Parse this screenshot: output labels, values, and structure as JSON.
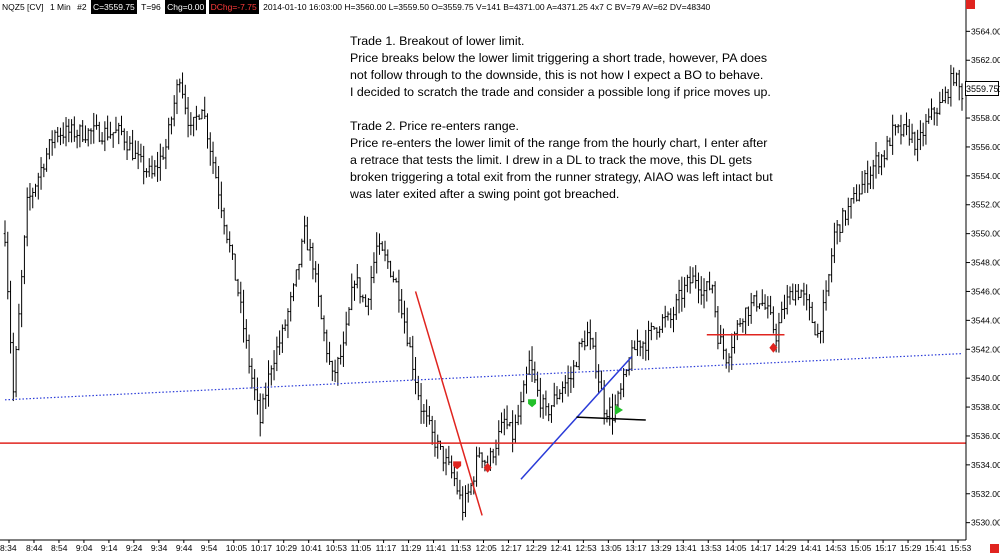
{
  "info_bar": {
    "symbol": "NQZ5 [CV]",
    "interval": "1 Min",
    "chart_no": "#2",
    "close": "C=3559.75",
    "ticks": "T=96",
    "change": "Chg=0.00",
    "daily_change": "DChg=-7.75",
    "stats": "2014-01-10 16:03:00 H=3560.00 L=3559.50 O=3559.75 V=141 B=4371.00 A=4371.25 4x7 C BV=79 AV=62 DV=48340"
  },
  "annotation": {
    "trade1": [
      "Trade 1.  Breakout of lower limit.",
      "Price breaks below the lower limit triggering a short trade, however, PA does",
      "not follow through to the downside, this is not how I expect a BO to behave.",
      "I decided to scratch the trade and consider a possible long if price moves up."
    ],
    "trade2": [
      "Trade 2.  Price re-enters range.",
      "Price re-enters the lower limit of the range from the hourly chart, I enter after",
      "a retrace that tests the limit.  I drew in a DL to track the move, this DL gets",
      "broken triggering a total exit from the runner strategy, AIAO was left intact but",
      "was later exited after a swing point got breached."
    ]
  },
  "last_price_tag": "3559.75",
  "colors": {
    "candles": "#000000",
    "limit_line": "#e0241f",
    "trend_line": "#2a3bd8",
    "dotted_line": "#2a3bd8",
    "marker_red": "#e0241f",
    "marker_green": "#22c02a"
  },
  "chart_data": {
    "type": "candlestick",
    "ylim": [
      3528.8,
      3565.2
    ],
    "y_ticks": [
      3530,
      3532,
      3534,
      3536,
      3538,
      3540,
      3542,
      3544,
      3546,
      3548,
      3550,
      3552,
      3554,
      3556,
      3558,
      3560,
      3562,
      3564
    ],
    "y_tick_labels": [
      "3530.00",
      "3532.00",
      "3534.00",
      "3536.00",
      "3538.00",
      "3540.00",
      "3542.00",
      "3544.00",
      "3546.00",
      "3548.00",
      "3550.00",
      "3552.00",
      "3554.00",
      "3556.00",
      "3558.00",
      "3560.00",
      "3562.00",
      "3564.00"
    ],
    "x_tick_labels": [
      "8:34",
      "8:44",
      "8:54",
      "9:04",
      "9:14",
      "9:24",
      "9:34",
      "9:44",
      "9:54",
      "10:05",
      "10:17",
      "10:29",
      "10:41",
      "10:53",
      "11:05",
      "11:17",
      "11:29",
      "11:41",
      "11:53",
      "12:05",
      "12:17",
      "12:29",
      "12:41",
      "12:53",
      "13:05",
      "13:17",
      "13:29",
      "13:41",
      "13:53",
      "14:05",
      "14:17",
      "14:29",
      "14:41",
      "14:53",
      "15:05",
      "15:17",
      "15:29",
      "15:41",
      "15:53"
    ],
    "price_path": [
      [
        0,
        3550
      ],
      [
        3,
        3539
      ],
      [
        8,
        3552
      ],
      [
        18,
        3557
      ],
      [
        24,
        3557
      ],
      [
        30,
        3557
      ],
      [
        36,
        3557
      ],
      [
        42,
        3557
      ],
      [
        48,
        3555
      ],
      [
        53,
        3554
      ],
      [
        58,
        3556
      ],
      [
        63,
        3561
      ],
      [
        67,
        3557
      ],
      [
        71,
        3559
      ],
      [
        75,
        3555
      ],
      [
        80,
        3550
      ],
      [
        84,
        3546
      ],
      [
        88,
        3541
      ],
      [
        92,
        3537
      ],
      [
        96,
        3541
      ],
      [
        100,
        3543
      ],
      [
        104,
        3546
      ],
      [
        108,
        3550
      ],
      [
        111,
        3548
      ],
      [
        114,
        3544
      ],
      [
        118,
        3540
      ],
      [
        122,
        3542
      ],
      [
        126,
        3547
      ],
      [
        130,
        3545
      ],
      [
        134,
        3549
      ],
      [
        138,
        3548
      ],
      [
        142,
        3546
      ],
      [
        146,
        3542
      ],
      [
        150,
        3538
      ],
      [
        154,
        3536
      ],
      [
        158,
        3534.5
      ],
      [
        162,
        3533
      ],
      [
        165,
        3531
      ],
      [
        168,
        3532.5
      ],
      [
        171,
        3535
      ],
      [
        174,
        3534
      ],
      [
        177,
        3535.5
      ],
      [
        180,
        3537
      ],
      [
        183,
        3536
      ],
      [
        186,
        3538
      ],
      [
        189,
        3541
      ],
      [
        192,
        3539
      ],
      [
        195,
        3537.5
      ],
      [
        198,
        3538.5
      ],
      [
        201,
        3539.5
      ],
      [
        204,
        3540
      ],
      [
        207,
        3542
      ],
      [
        210,
        3543
      ],
      [
        213,
        3541
      ],
      [
        216,
        3538
      ],
      [
        219,
        3537.5
      ],
      [
        222,
        3539
      ],
      [
        225,
        3541
      ],
      [
        228,
        3542.5
      ],
      [
        231,
        3542.5
      ],
      [
        234,
        3543.5
      ],
      [
        237,
        3544
      ],
      [
        240,
        3544
      ],
      [
        243,
        3545.5
      ],
      [
        246,
        3546.5
      ],
      [
        249,
        3547
      ],
      [
        252,
        3546
      ],
      [
        255,
        3546.5
      ],
      [
        257,
        3543
      ],
      [
        260,
        3541.5
      ],
      [
        263,
        3543
      ],
      [
        266,
        3544.5
      ],
      [
        269,
        3545
      ],
      [
        272,
        3545.5
      ],
      [
        275,
        3544.5
      ],
      [
        278,
        3543
      ],
      [
        281,
        3545
      ],
      [
        284,
        3546
      ],
      [
        287,
        3546
      ],
      [
        290,
        3544.5
      ],
      [
        293,
        3543
      ],
      [
        296,
        3545.5
      ],
      [
        299,
        3550
      ],
      [
        302,
        3551
      ],
      [
        305,
        3552
      ],
      [
        308,
        3553
      ],
      [
        311,
        3554
      ],
      [
        314,
        3555
      ],
      [
        317,
        3555.5
      ],
      [
        320,
        3557
      ],
      [
        323,
        3557
      ],
      [
        326,
        3557
      ],
      [
        329,
        3556
      ],
      [
        332,
        3557.5
      ],
      [
        335,
        3558.5
      ],
      [
        338,
        3559
      ],
      [
        340,
        3560
      ],
      [
        342,
        3561
      ],
      [
        344,
        3560
      ],
      [
        345,
        3559.75
      ]
    ],
    "lines": [
      {
        "name": "",
        "kind": "horizontal",
        "price": 3535.5,
        "color": "red"
      },
      {
        "name": "",
        "kind": "dotted",
        "from": [
          0,
          3538.5
        ],
        "to": [
          345,
          3541.7
        ],
        "color": "blue"
      },
      {
        "name": "",
        "kind": "trend",
        "from": [
          148,
          3546
        ],
        "to": [
          172,
          3530.5
        ],
        "color": "red"
      },
      {
        "name": "",
        "kind": "trend",
        "from": [
          186,
          3533
        ],
        "to": [
          226,
          3541.5
        ],
        "color": "blue"
      },
      {
        "name": "",
        "kind": "segment",
        "from": [
          206,
          3537.3
        ],
        "to": [
          231,
          3537.1
        ],
        "color": "black"
      },
      {
        "name": "",
        "kind": "segment",
        "from": [
          253,
          3543
        ],
        "to": [
          281,
          3543
        ],
        "color": "red"
      }
    ],
    "markers": [
      {
        "bar": 163,
        "price": 3534,
        "color": "red",
        "shape": "left-arrow"
      },
      {
        "bar": 174,
        "price": 3533.8,
        "color": "red",
        "shape": "diamond"
      },
      {
        "bar": 190,
        "price": 3538.3,
        "color": "green",
        "shape": "left-arrow"
      },
      {
        "bar": 221,
        "price": 3537.8,
        "color": "green",
        "shape": "right-arrow"
      },
      {
        "bar": 277,
        "price": 3542.1,
        "color": "red",
        "shape": "diamond"
      }
    ]
  }
}
